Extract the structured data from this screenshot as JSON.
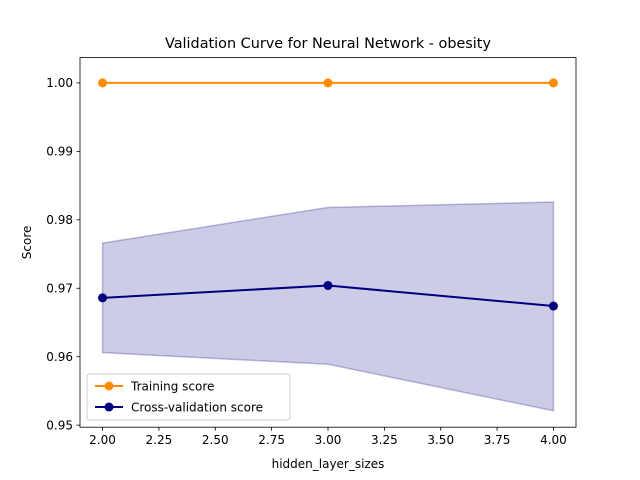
{
  "chart_data": {
    "type": "line",
    "title": "Validation Curve for Neural Network - obesity",
    "xlabel": "hidden_layer_sizes",
    "ylabel": "Score",
    "xlim": [
      1.9,
      4.1
    ],
    "ylim": [
      0.9497,
      1.0037
    ],
    "x_ticks": [
      2.0,
      2.25,
      2.5,
      2.75,
      3.0,
      3.25,
      3.5,
      3.75,
      4.0
    ],
    "x_tick_labels": [
      "2.00",
      "2.25",
      "2.50",
      "2.75",
      "3.00",
      "3.25",
      "3.50",
      "3.75",
      "4.00"
    ],
    "y_ticks": [
      0.95,
      0.96,
      0.97,
      0.98,
      0.99,
      1.0
    ],
    "y_tick_labels": [
      "0.95",
      "0.96",
      "0.97",
      "0.98",
      "0.99",
      "1.00"
    ],
    "grid": false,
    "legend_position": "lower-left",
    "x": [
      2,
      3,
      4
    ],
    "series": [
      {
        "name": "Training score",
        "values": [
          1.0,
          1.0,
          1.0
        ],
        "color": "#ff8c00"
      },
      {
        "name": "Cross-validation score",
        "values": [
          0.9686,
          0.9704,
          0.9674
        ],
        "color": "#000080",
        "band_upper": [
          0.9766,
          0.9818,
          0.9826
        ],
        "band_lower": [
          0.9606,
          0.9589,
          0.9521
        ],
        "band_color": "#000080"
      }
    ]
  }
}
